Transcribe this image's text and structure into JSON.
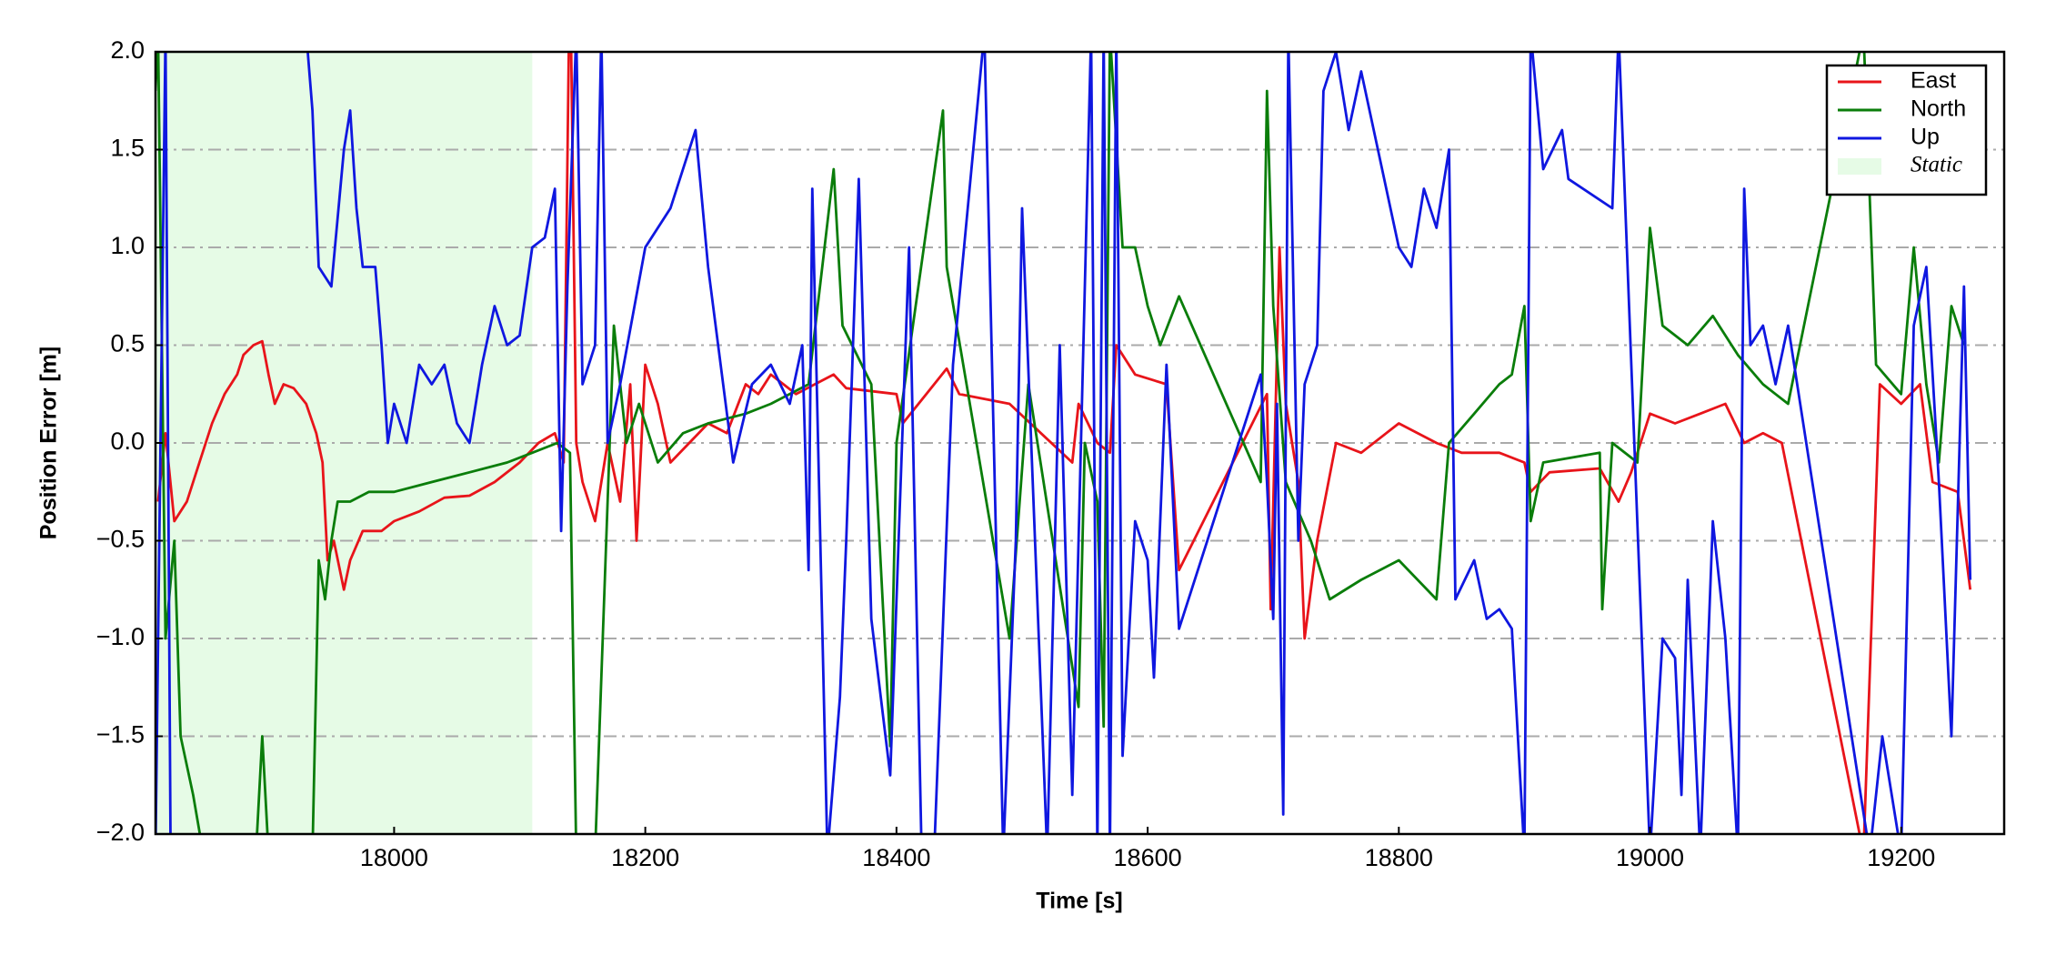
{
  "chart_data": {
    "type": "line",
    "xlabel": "Time [s]",
    "ylabel": "Position Error [m]",
    "xlim": [
      17810,
      19282
    ],
    "ylim": [
      -2.0,
      2.0
    ],
    "xticks": [
      18000,
      18200,
      18400,
      18600,
      18800,
      19000,
      19200
    ],
    "yticks": [
      {
        "value": -2.0,
        "label": "−2.0"
      },
      {
        "value": -1.5,
        "label": "−1.5"
      },
      {
        "value": -1.0,
        "label": "−1.0"
      },
      {
        "value": -0.5,
        "label": "−0.5"
      },
      {
        "value": 0.0,
        "label": "0.0"
      },
      {
        "value": 0.5,
        "label": "0.5"
      },
      {
        "value": 1.0,
        "label": "1.0"
      },
      {
        "value": 1.5,
        "label": "1.5"
      },
      {
        "value": 2.0,
        "label": "2.0"
      }
    ],
    "grid": true,
    "legend": "upper right",
    "static_region": {
      "name": "Static",
      "color": "#e6fbe6",
      "x": [
        17810,
        18110
      ]
    },
    "series": [
      {
        "name": "East",
        "color": "#e8141a",
        "x": [
          17812,
          17818,
          17825,
          17835,
          17845,
          17855,
          17865,
          17875,
          17880,
          17888,
          17895,
          17900,
          17905,
          17912,
          17920,
          17930,
          17938,
          17943,
          17947,
          17952,
          17960,
          17965,
          17975,
          17990,
          18000,
          18020,
          18040,
          18060,
          18080,
          18100,
          18115,
          18128,
          18135,
          18140,
          18145,
          18150,
          18160,
          18170,
          18180,
          18188,
          18193,
          18200,
          18210,
          18220,
          18235,
          18250,
          18265,
          18280,
          18290,
          18300,
          18310,
          18320,
          18335,
          18350,
          18360,
          18400,
          18405,
          18440,
          18450,
          18490,
          18540,
          18545,
          18560,
          18570,
          18575,
          18590,
          18615,
          18625,
          18695,
          18698,
          18705,
          18710,
          18720,
          18725,
          18735,
          18750,
          18770,
          18800,
          18830,
          18850,
          18880,
          18900,
          18905,
          18920,
          18960,
          18975,
          18985,
          19000,
          19020,
          19040,
          19060,
          19075,
          19090,
          19105,
          19170,
          19183,
          19200,
          19215,
          19225,
          19245,
          19255
        ],
        "values": [
          -0.3,
          0.05,
          -0.4,
          -0.3,
          -0.1,
          0.1,
          0.25,
          0.35,
          0.45,
          0.5,
          0.52,
          0.35,
          0.2,
          0.3,
          0.28,
          0.2,
          0.05,
          -0.1,
          -0.6,
          -0.5,
          -0.75,
          -0.6,
          -0.45,
          -0.45,
          -0.4,
          -0.35,
          -0.28,
          -0.27,
          -0.2,
          -0.1,
          0.0,
          0.05,
          -0.1,
          2.5,
          0.0,
          -0.2,
          -0.4,
          0.0,
          -0.3,
          0.3,
          -0.5,
          0.4,
          0.2,
          -0.1,
          0.0,
          0.1,
          0.05,
          0.3,
          0.25,
          0.35,
          0.3,
          0.25,
          0.3,
          0.35,
          0.28,
          0.25,
          0.1,
          0.38,
          0.25,
          0.2,
          -0.1,
          0.2,
          0.0,
          -0.05,
          0.5,
          0.35,
          0.3,
          -0.65,
          0.25,
          -0.85,
          1.0,
          0.2,
          -0.2,
          -1.0,
          -0.5,
          0.0,
          -0.05,
          0.1,
          0.0,
          -0.05,
          -0.05,
          -0.1,
          -0.25,
          -0.15,
          -0.13,
          -0.3,
          -0.15,
          0.15,
          0.1,
          0.15,
          0.2,
          0.0,
          0.05,
          0.0,
          -2.1,
          0.3,
          0.2,
          0.3,
          -0.2,
          -0.25,
          -0.75
        ]
      },
      {
        "name": "North",
        "color": "#0a7d0a",
        "x": [
          17810,
          17812,
          17818,
          17825,
          17830,
          17840,
          17848,
          17890,
          17895,
          17900,
          17935,
          17940,
          17945,
          17950,
          17955,
          17965,
          17980,
          18000,
          18030,
          18060,
          18090,
          18110,
          18130,
          18140,
          18145,
          18160,
          18175,
          18185,
          18195,
          18200,
          18210,
          18230,
          18250,
          18280,
          18300,
          18330,
          18350,
          18357,
          18380,
          18395,
          18400,
          18437,
          18440,
          18490,
          18505,
          18545,
          18550,
          18560,
          18565,
          18570,
          18580,
          18590,
          18600,
          18610,
          18625,
          18690,
          18695,
          18700,
          18710,
          18730,
          18745,
          18770,
          18800,
          18830,
          18840,
          18860,
          18880,
          18890,
          18900,
          18905,
          18915,
          18960,
          18962,
          18970,
          18990,
          19000,
          19010,
          19030,
          19050,
          19070,
          19090,
          19100,
          19110,
          19170,
          19180,
          19200,
          19210,
          19220,
          19230,
          19240,
          19250
        ],
        "values": [
          1.8,
          2.1,
          -1.0,
          -0.5,
          -1.5,
          -1.8,
          -2.1,
          -2.1,
          -1.5,
          -2.1,
          -2.1,
          -0.6,
          -0.8,
          -0.5,
          -0.3,
          -0.3,
          -0.25,
          -0.25,
          -0.2,
          -0.15,
          -0.1,
          -0.05,
          0.0,
          -0.05,
          -2.1,
          -2.1,
          0.6,
          0.0,
          0.2,
          0.1,
          -0.1,
          0.05,
          0.1,
          0.15,
          0.2,
          0.3,
          1.4,
          0.6,
          0.3,
          -1.55,
          0.0,
          1.7,
          0.9,
          -1.0,
          0.3,
          -1.35,
          0.0,
          -0.3,
          -1.45,
          2.1,
          1.0,
          1.0,
          0.7,
          0.5,
          0.75,
          -0.2,
          1.8,
          0.7,
          -0.2,
          -0.5,
          -0.8,
          -0.7,
          -0.6,
          -0.8,
          0.0,
          0.15,
          0.3,
          0.35,
          0.7,
          -0.4,
          -0.1,
          -0.05,
          -0.85,
          0.0,
          -0.1,
          1.1,
          0.6,
          0.5,
          0.65,
          0.45,
          0.3,
          0.25,
          0.2,
          2.1,
          0.4,
          0.25,
          1.0,
          0.3,
          -0.1,
          0.7,
          0.5
        ]
      },
      {
        "name": "Up",
        "color": "#0f17e0",
        "x": [
          17810,
          17818,
          17822,
          17926,
          17930,
          17935,
          17940,
          17950,
          17960,
          17965,
          17970,
          17975,
          17985,
          17990,
          17995,
          18000,
          18010,
          18020,
          18030,
          18040,
          18050,
          18060,
          18070,
          18080,
          18090,
          18100,
          18110,
          18120,
          18128,
          18133,
          18138,
          18145,
          18150,
          18160,
          18165,
          18170,
          18180,
          18200,
          18220,
          18240,
          18250,
          18260,
          18270,
          18285,
          18300,
          18315,
          18325,
          18330,
          18333,
          18345,
          18355,
          18360,
          18370,
          18380,
          18395,
          18410,
          18420,
          18430,
          18445,
          18470,
          18485,
          18495,
          18500,
          18520,
          18530,
          18540,
          18555,
          18560,
          18565,
          18570,
          18575,
          18580,
          18590,
          18600,
          18605,
          18615,
          18625,
          18690,
          18695,
          18700,
          18703,
          18708,
          18712,
          18720,
          18725,
          18735,
          18740,
          18750,
          18760,
          18770,
          18780,
          18800,
          18810,
          18820,
          18830,
          18840,
          18845,
          18860,
          18870,
          18880,
          18890,
          18900,
          18905,
          18915,
          18930,
          18935,
          18970,
          18975,
          19000,
          19010,
          19020,
          19025,
          19030,
          19040,
          19050,
          19060,
          19070,
          19075,
          19080,
          19090,
          19100,
          19110,
          19175,
          19185,
          19200,
          19210,
          19220,
          19230,
          19240,
          19250,
          19255
        ],
        "values": [
          -2.1,
          2.1,
          -2.1,
          null,
          2.1,
          1.7,
          0.9,
          0.8,
          1.5,
          1.7,
          1.2,
          0.9,
          0.9,
          0.5,
          0.0,
          0.2,
          0.0,
          0.4,
          0.3,
          0.4,
          0.1,
          0.0,
          0.4,
          0.7,
          0.5,
          0.55,
          1.0,
          1.05,
          1.3,
          -0.45,
          0.8,
          2.1,
          0.3,
          0.5,
          2.1,
          0.0,
          0.3,
          1.0,
          1.2,
          1.6,
          0.9,
          0.4,
          -0.1,
          0.3,
          0.4,
          0.2,
          0.5,
          -0.65,
          1.3,
          -2.1,
          -1.3,
          -0.5,
          1.35,
          -0.9,
          -1.7,
          1.0,
          -2.1,
          -2.1,
          0.4,
          2.1,
          -2.1,
          -0.5,
          1.2,
          -2.1,
          0.5,
          -1.8,
          2.1,
          -2.1,
          2.1,
          -2.1,
          2.1,
          -1.6,
          -0.4,
          -0.6,
          -1.2,
          0.4,
          -0.95,
          0.35,
          -0.2,
          -0.9,
          0.2,
          -1.9,
          2.1,
          -0.5,
          0.3,
          0.5,
          1.8,
          2.0,
          1.6,
          1.9,
          1.6,
          1.0,
          0.9,
          1.3,
          1.1,
          1.5,
          -0.8,
          -0.6,
          -0.9,
          -0.85,
          -0.95,
          -2.1,
          2.1,
          1.4,
          1.6,
          1.35,
          1.2,
          2.1,
          -2.1,
          -1.0,
          -1.1,
          -1.8,
          -0.7,
          -2.1,
          -0.4,
          -1.0,
          -2.1,
          1.3,
          0.5,
          0.6,
          0.3,
          0.6,
          -2.1,
          -1.5,
          -2.1,
          0.6,
          0.9,
          -0.2,
          -1.5,
          0.8,
          -0.7
        ]
      }
    ]
  }
}
